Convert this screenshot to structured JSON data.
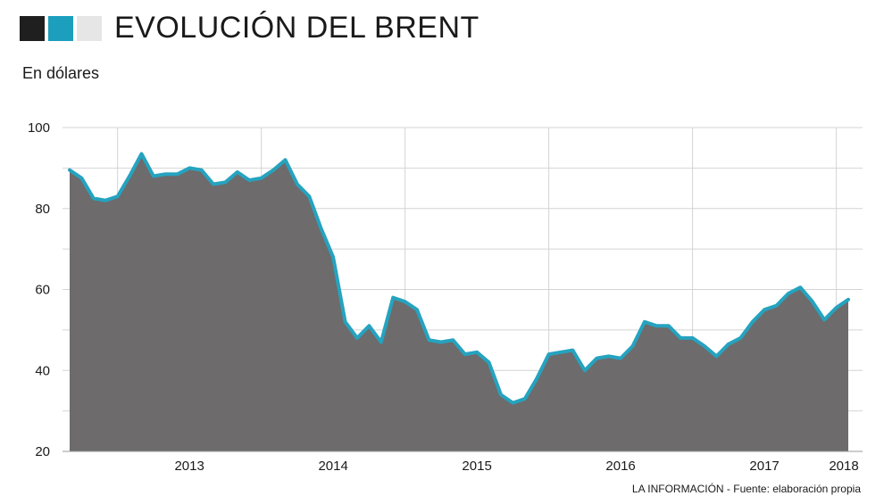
{
  "header": {
    "title": "EVOLUCIÓN DEL BRENT",
    "squares": [
      "#1f1f1f",
      "#1b9fbd",
      "#e6e6e6"
    ]
  },
  "subtitle": "En dólares",
  "footer": "LA INFORMACIÓN - Fuente: elaboración propia",
  "colors": {
    "area": "#6d6b6c",
    "line": "#25a3bf",
    "grid": "#d4d4d4"
  },
  "chart_data": {
    "type": "area",
    "title": "EVOLUCIÓN DEL BRENT",
    "ylabel": "En dólares",
    "xlabel": "",
    "ylim": [
      20,
      100
    ],
    "yticks": [
      20,
      40,
      60,
      80,
      100
    ],
    "grid": true,
    "x_labels": [
      "2013",
      "2014",
      "2015",
      "2016",
      "2017",
      "2018"
    ],
    "series": [
      {
        "x": [
          "2012-09",
          "2012-10",
          "2012-11",
          "2012-12",
          "2013-01",
          "2013-02",
          "2013-03",
          "2013-04",
          "2013-05",
          "2013-06",
          "2013-07",
          "2013-08",
          "2013-09",
          "2013-10",
          "2013-11",
          "2013-12",
          "2014-01",
          "2014-02",
          "2014-03",
          "2014-04",
          "2014-05",
          "2014-06",
          "2014-07",
          "2014-08",
          "2014-09",
          "2014-10",
          "2014-11",
          "2014-12",
          "2015-01",
          "2015-02",
          "2015-03",
          "2015-04",
          "2015-05",
          "2015-06",
          "2015-07",
          "2015-08",
          "2015-09",
          "2015-10",
          "2015-11",
          "2015-12",
          "2016-01",
          "2016-02",
          "2016-03",
          "2016-04",
          "2016-05",
          "2016-06",
          "2016-07",
          "2016-08",
          "2016-09",
          "2016-10",
          "2016-11",
          "2016-12",
          "2017-01",
          "2017-02",
          "2017-03",
          "2017-04",
          "2017-05",
          "2017-06",
          "2017-07",
          "2017-08",
          "2017-09",
          "2017-10",
          "2017-11",
          "2017-12",
          "2018-01",
          "2018-02"
        ],
        "values": [
          89.5,
          87.5,
          82.5,
          82.0,
          83.0,
          88.0,
          93.5,
          88.0,
          88.5,
          88.5,
          90.0,
          89.5,
          86.0,
          86.5,
          89.0,
          87.0,
          87.5,
          89.5,
          92.0,
          86.0,
          83.0,
          75.0,
          68.0,
          52.0,
          48.0,
          51.0,
          47.0,
          58.0,
          57.0,
          55.0,
          47.5,
          47.0,
          47.5,
          44.0,
          44.5,
          42.0,
          34.0,
          32.0,
          33.0,
          38.0,
          44.0,
          44.5,
          45.0,
          40.0,
          43.0,
          43.5,
          43.0,
          46.0,
          52.0,
          51.0,
          51.0,
          48.0,
          48.0,
          46.0,
          43.5,
          46.5,
          48.0,
          52.0,
          55.0,
          56.0,
          59.0,
          60.5,
          57.0,
          52.5,
          55.5,
          57.5
        ]
      }
    ]
  }
}
